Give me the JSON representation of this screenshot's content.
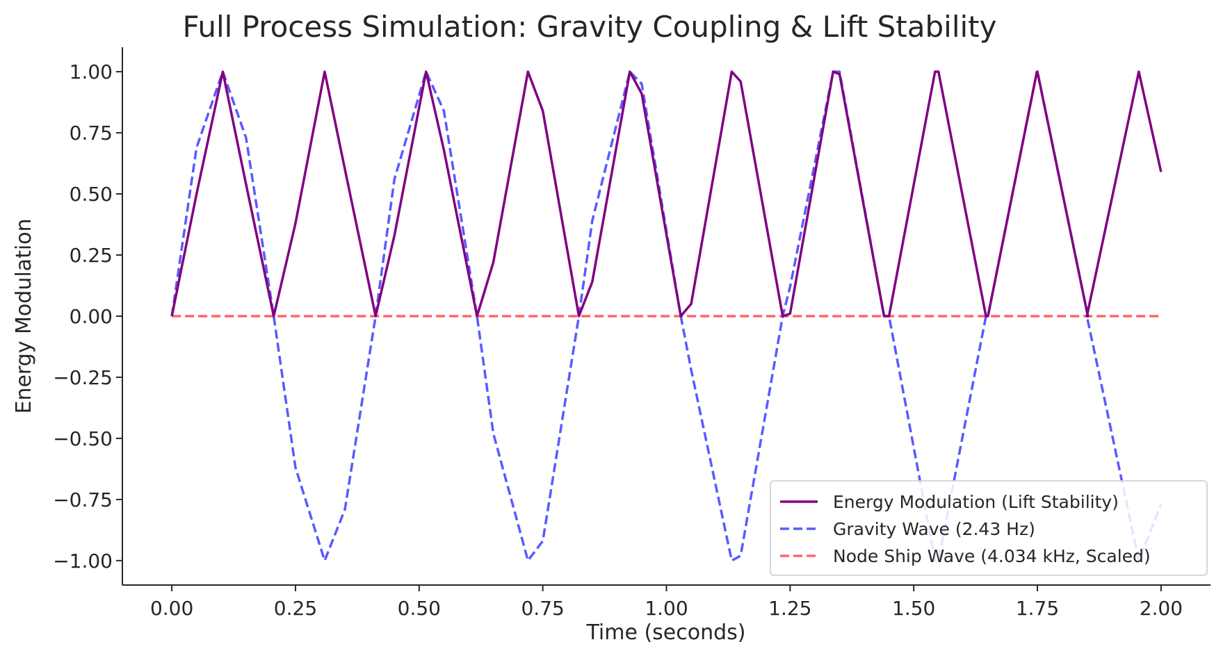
{
  "chart_data": {
    "type": "line",
    "title": "Full Process Simulation: Gravity Coupling & Lift Stability",
    "xlabel": "Time (seconds)",
    "ylabel": "Energy Modulation",
    "xlim": [
      -0.1,
      2.1
    ],
    "ylim": [
      -1.1,
      1.1
    ],
    "x_ticks": [
      "0.00",
      "0.25",
      "0.50",
      "0.75",
      "1.00",
      "1.25",
      "1.50",
      "1.75",
      "2.00"
    ],
    "y_ticks": [
      "1.00",
      "0.75",
      "0.50",
      "0.25",
      "0.00",
      "−0.25",
      "−0.50",
      "−0.75",
      "−1.00"
    ],
    "grid": false,
    "legend_position": "lower-right",
    "series": [
      {
        "name": "Energy Modulation (Lift Stability)",
        "style": "solid",
        "color": "#800080",
        "x": [
          0.0,
          0.05,
          0.103,
          0.15,
          0.206,
          0.25,
          0.309,
          0.35,
          0.412,
          0.45,
          0.514,
          0.55,
          0.617,
          0.65,
          0.72,
          0.75,
          0.823,
          0.85,
          0.926,
          0.95,
          1.029,
          1.05,
          1.132,
          1.15,
          1.235,
          1.25,
          1.337,
          1.35,
          1.44,
          1.45,
          1.543,
          1.55,
          1.646,
          1.65,
          1.749,
          1.75,
          1.852,
          1.85,
          1.955,
          2.0
        ],
        "y": [
          0.0,
          0.5,
          1.0,
          0.54,
          0.0,
          0.38,
          1.0,
          0.6,
          0.0,
          0.33,
          1.0,
          0.68,
          0.0,
          0.22,
          1.0,
          0.84,
          0.0,
          0.14,
          1.0,
          0.91,
          0.0,
          0.05,
          1.0,
          0.96,
          0.0,
          0.01,
          1.0,
          0.99,
          0.0,
          0.0,
          1.0,
          1.0,
          0.0,
          0.0,
          1.0,
          1.0,
          0.0,
          0.0,
          1.0,
          0.59
        ]
      },
      {
        "name": "Gravity Wave (2.43 Hz)",
        "style": "dashed",
        "color": "#5a5aff",
        "x": [
          0.0,
          0.05,
          0.103,
          0.15,
          0.206,
          0.25,
          0.309,
          0.35,
          0.412,
          0.45,
          0.514,
          0.55,
          0.617,
          0.65,
          0.72,
          0.75,
          0.823,
          0.85,
          0.926,
          0.95,
          1.029,
          1.05,
          1.132,
          1.15,
          1.235,
          1.25,
          1.337,
          1.35,
          1.44,
          1.45,
          1.543,
          1.55,
          1.646,
          1.65,
          1.749,
          1.75,
          1.852,
          1.85,
          1.955,
          2.0
        ],
        "y": [
          0.0,
          0.69,
          1.0,
          0.73,
          0.0,
          -0.62,
          -1.0,
          -0.79,
          0.0,
          0.56,
          1.0,
          0.84,
          0.0,
          -0.48,
          -1.0,
          -0.92,
          0.0,
          0.39,
          1.0,
          0.95,
          0.0,
          -0.22,
          -1.0,
          -0.98,
          0.0,
          0.12,
          1.0,
          1.0,
          0.0,
          0.0,
          -1.0,
          -1.0,
          0.0,
          0.0,
          1.0,
          1.0,
          0.0,
          0.0,
          -1.0,
          -0.77
        ]
      },
      {
        "name": "Node Ship Wave (4.034 kHz, Scaled)",
        "style": "dashed",
        "color": "#ff6666",
        "x": [
          0.0,
          2.0
        ],
        "y": [
          0.0,
          0.0
        ]
      }
    ]
  }
}
